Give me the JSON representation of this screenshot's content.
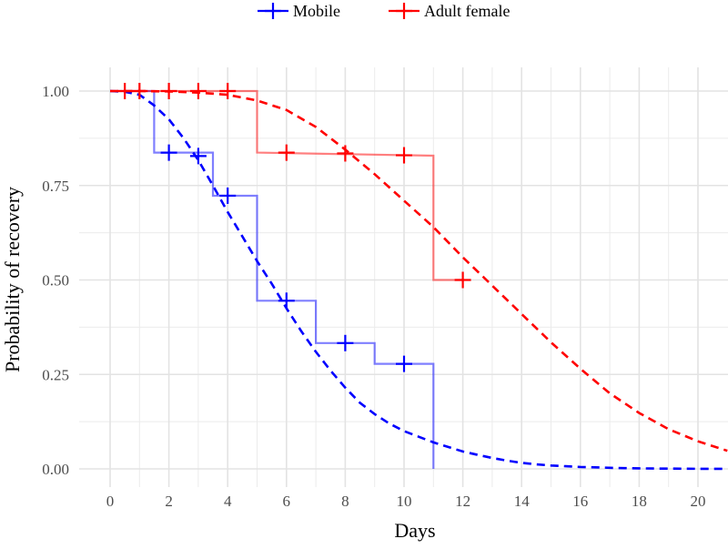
{
  "chart_data": {
    "type": "line",
    "title": "",
    "xlabel": "Days",
    "ylabel": "Probability of recovery",
    "xlim": [
      0,
      21
    ],
    "ylim": [
      0,
      1
    ],
    "x_ticks": [
      0,
      2,
      4,
      6,
      8,
      10,
      12,
      14,
      16,
      18,
      20
    ],
    "x_tick_labels": [
      "0",
      "2",
      "4",
      "6",
      "8",
      "10",
      "12",
      "14",
      "16",
      "18",
      "20"
    ],
    "y_ticks": [
      0,
      0.25,
      0.5,
      0.75,
      1
    ],
    "y_tick_labels": [
      "0.00",
      "0.25",
      "0.50",
      "0.75",
      "1.00"
    ],
    "grid": true,
    "legend_position": "top",
    "series": [
      {
        "name": "Mobile",
        "color": "#0000ff",
        "step_x": [
          0,
          1.5,
          1.5,
          3.5,
          3.5,
          5,
          5,
          7,
          7,
          9,
          9,
          11,
          11
        ],
        "step_y": [
          1.0,
          1.0,
          0.837,
          0.837,
          0.723,
          0.723,
          0.445,
          0.445,
          0.333,
          0.333,
          0.278,
          0.278,
          0.0
        ],
        "censor_x": [
          2,
          3,
          4,
          6,
          8,
          10
        ],
        "censor_y": [
          0.837,
          0.828,
          0.723,
          0.445,
          0.333,
          0.278
        ],
        "fit_x": [
          0,
          0.5,
          1,
          1.5,
          2,
          2.5,
          3,
          3.5,
          4,
          4.5,
          5,
          5.5,
          6,
          6.5,
          7,
          7.5,
          8,
          8.5,
          9,
          9.5,
          10,
          10.5,
          11,
          11.5,
          12,
          12.5,
          13,
          13.5,
          14,
          14.5,
          15,
          15.5,
          16,
          16.5,
          17,
          17.5,
          18,
          18.5,
          19,
          19.5,
          20,
          20.5,
          21
        ],
        "fit_y": [
          1.0,
          0.998,
          0.99,
          0.962,
          0.925,
          0.875,
          0.817,
          0.75,
          0.68,
          0.615,
          0.55,
          0.49,
          0.425,
          0.365,
          0.31,
          0.26,
          0.215,
          0.175,
          0.145,
          0.12,
          0.1,
          0.085,
          0.07,
          0.058,
          0.046,
          0.037,
          0.029,
          0.022,
          0.016,
          0.012,
          0.009,
          0.007,
          0.005,
          0.004,
          0.003,
          0.002,
          0.0015,
          0.001,
          0.0007,
          0.0005,
          0.0003,
          0.0002,
          0.0001
        ]
      },
      {
        "name": "Adult female",
        "color": "#ff0000",
        "step_x": [
          0,
          5,
          5,
          11,
          11,
          12
        ],
        "step_y": [
          1.0,
          1.0,
          0.837,
          0.829,
          0.5,
          0.5
        ],
        "censor_x": [
          0.5,
          1,
          2,
          3,
          4,
          6,
          8,
          10,
          12
        ],
        "censor_y": [
          1.0,
          1.0,
          1.0,
          1.0,
          1.0,
          0.837,
          0.835,
          0.83,
          0.5
        ],
        "fit_x": [
          0,
          1,
          2,
          3,
          4,
          5,
          6,
          7,
          8,
          9,
          10,
          11,
          12,
          13,
          14,
          15,
          16,
          17,
          18,
          19,
          20,
          21
        ],
        "fit_y": [
          1.0,
          1.0,
          0.999,
          0.996,
          0.99,
          0.975,
          0.95,
          0.905,
          0.845,
          0.78,
          0.71,
          0.64,
          0.56,
          0.485,
          0.41,
          0.335,
          0.265,
          0.2,
          0.148,
          0.105,
          0.073,
          0.048
        ]
      }
    ]
  }
}
